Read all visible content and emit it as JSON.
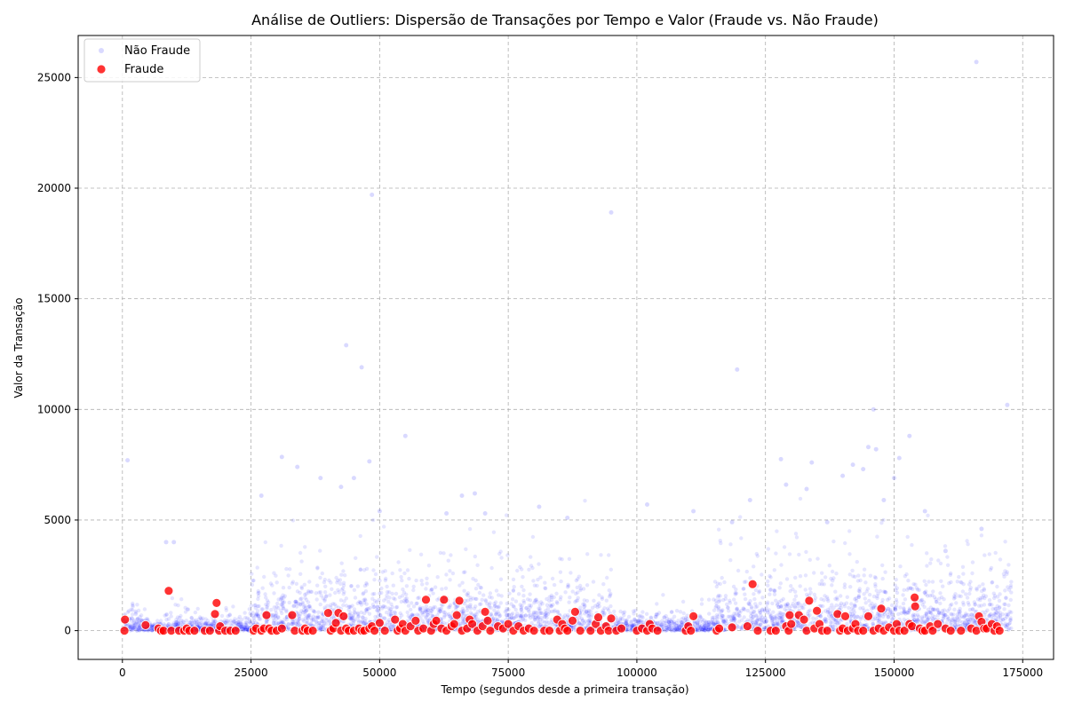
{
  "chart_data": {
    "type": "scatter",
    "title": "Análise de Outliers: Dispersão de Transações por Tempo e Valor (Fraude vs. Não Fraude)",
    "xlabel": "Tempo (segundos desde a primeira transação)",
    "ylabel": "Valor da Transação",
    "xlim": [
      -8600,
      181000
    ],
    "ylim": [
      -1300,
      26900
    ],
    "xticks": [
      0,
      25000,
      50000,
      75000,
      100000,
      125000,
      150000,
      175000
    ],
    "yticks": [
      0,
      5000,
      10000,
      15000,
      20000,
      25000
    ],
    "grid": true,
    "legend_position": "top-left",
    "colors": {
      "non_fraud": "#0000ff",
      "fraud": "#ff0000"
    },
    "series": [
      {
        "name": "Não Fraude",
        "color": "#0000ff",
        "outliers": [
          [
            1000,
            7700
          ],
          [
            8500,
            4000
          ],
          [
            10000,
            4000
          ],
          [
            27000,
            6100
          ],
          [
            31000,
            7850
          ],
          [
            34000,
            7400
          ],
          [
            38500,
            6900
          ],
          [
            42500,
            6500
          ],
          [
            43500,
            12900
          ],
          [
            45000,
            6900
          ],
          [
            46500,
            11900
          ],
          [
            48000,
            7650
          ],
          [
            48500,
            19700
          ],
          [
            50000,
            5400
          ],
          [
            55000,
            8800
          ],
          [
            63000,
            5300
          ],
          [
            66000,
            6100
          ],
          [
            68500,
            6200
          ],
          [
            70500,
            5300
          ],
          [
            81000,
            5600
          ],
          [
            86500,
            5100
          ],
          [
            95000,
            18900
          ],
          [
            102000,
            5700
          ],
          [
            111000,
            5400
          ],
          [
            118500,
            4900
          ],
          [
            119500,
            11800
          ],
          [
            122000,
            5900
          ],
          [
            128000,
            7750
          ],
          [
            129000,
            6600
          ],
          [
            133000,
            6400
          ],
          [
            134000,
            7600
          ],
          [
            140000,
            7000
          ],
          [
            142000,
            7500
          ],
          [
            144000,
            7300
          ],
          [
            145000,
            8300
          ],
          [
            146000,
            10000
          ],
          [
            146500,
            8200
          ],
          [
            148000,
            5900
          ],
          [
            150000,
            6900
          ],
          [
            151000,
            7800
          ],
          [
            153000,
            8800
          ],
          [
            156000,
            5400
          ],
          [
            166000,
            25700
          ],
          [
            172000,
            10200
          ],
          [
            167000,
            4600
          ],
          [
            160000,
            3600
          ],
          [
            137000,
            4900
          ]
        ],
        "dense_bands": [
          {
            "x_range": [
              0,
              5000
            ],
            "y_typical": 800
          },
          {
            "x_range": [
              5000,
              25000
            ],
            "y_typical": 500
          },
          {
            "x_range": [
              25000,
              95000
            ],
            "y_typical": 1800
          },
          {
            "x_range": [
              95000,
              115000
            ],
            "y_typical": 600
          },
          {
            "x_range": [
              115000,
              172800
            ],
            "y_typical": 2000
          }
        ]
      },
      {
        "name": "Fraude",
        "color": "#ff0000",
        "points": [
          [
            400,
            0
          ],
          [
            500,
            500
          ],
          [
            4500,
            250
          ],
          [
            7000,
            100
          ],
          [
            7500,
            0
          ],
          [
            8000,
            0
          ],
          [
            9000,
            1800
          ],
          [
            9500,
            0
          ],
          [
            11000,
            0
          ],
          [
            12000,
            0
          ],
          [
            12500,
            100
          ],
          [
            13000,
            0
          ],
          [
            14000,
            0
          ],
          [
            16000,
            0
          ],
          [
            17000,
            0
          ],
          [
            18000,
            750
          ],
          [
            18300,
            1250
          ],
          [
            18800,
            0
          ],
          [
            19000,
            200
          ],
          [
            20000,
            0
          ],
          [
            21000,
            0
          ],
          [
            22000,
            0
          ],
          [
            25500,
            0
          ],
          [
            26000,
            100
          ],
          [
            27000,
            0
          ],
          [
            27500,
            100
          ],
          [
            28000,
            700
          ],
          [
            28500,
            100
          ],
          [
            29000,
            0
          ],
          [
            30000,
            0
          ],
          [
            31000,
            100
          ],
          [
            33000,
            700
          ],
          [
            33500,
            0
          ],
          [
            35000,
            0
          ],
          [
            35500,
            100
          ],
          [
            36000,
            0
          ],
          [
            37000,
            0
          ],
          [
            40000,
            800
          ],
          [
            40500,
            0
          ],
          [
            41000,
            100
          ],
          [
            41500,
            350
          ],
          [
            42000,
            800
          ],
          [
            42500,
            0
          ],
          [
            43000,
            650
          ],
          [
            43500,
            100
          ],
          [
            44000,
            0
          ],
          [
            45000,
            0
          ],
          [
            46000,
            100
          ],
          [
            46500,
            0
          ],
          [
            47000,
            0
          ],
          [
            48000,
            100
          ],
          [
            48500,
            200
          ],
          [
            49000,
            0
          ],
          [
            50000,
            350
          ],
          [
            51000,
            0
          ],
          [
            53000,
            500
          ],
          [
            53500,
            0
          ],
          [
            54000,
            100
          ],
          [
            54500,
            300
          ],
          [
            55000,
            0
          ],
          [
            56000,
            200
          ],
          [
            57000,
            450
          ],
          [
            57500,
            0
          ],
          [
            58500,
            100
          ],
          [
            59000,
            1400
          ],
          [
            60000,
            0
          ],
          [
            60500,
            300
          ],
          [
            61000,
            450
          ],
          [
            62000,
            100
          ],
          [
            62500,
            1400
          ],
          [
            63000,
            0
          ],
          [
            64000,
            200
          ],
          [
            64500,
            300
          ],
          [
            65000,
            700
          ],
          [
            65500,
            1350
          ],
          [
            66000,
            0
          ],
          [
            67000,
            100
          ],
          [
            67500,
            500
          ],
          [
            68000,
            300
          ],
          [
            69000,
            0
          ],
          [
            70000,
            200
          ],
          [
            70500,
            850
          ],
          [
            71000,
            450
          ],
          [
            71500,
            0
          ],
          [
            73000,
            200
          ],
          [
            74000,
            100
          ],
          [
            75000,
            300
          ],
          [
            76000,
            0
          ],
          [
            77000,
            200
          ],
          [
            78000,
            0
          ],
          [
            79000,
            100
          ],
          [
            80000,
            0
          ],
          [
            82000,
            0
          ],
          [
            83000,
            0
          ],
          [
            84500,
            500
          ],
          [
            85000,
            0
          ],
          [
            85500,
            300
          ],
          [
            86000,
            100
          ],
          [
            86500,
            0
          ],
          [
            87500,
            450
          ],
          [
            88000,
            850
          ],
          [
            89000,
            0
          ],
          [
            91000,
            0
          ],
          [
            92000,
            300
          ],
          [
            92500,
            600
          ],
          [
            93000,
            0
          ],
          [
            94000,
            200
          ],
          [
            94500,
            0
          ],
          [
            95000,
            550
          ],
          [
            96000,
            0
          ],
          [
            97000,
            100
          ],
          [
            100000,
            0
          ],
          [
            101000,
            100
          ],
          [
            102000,
            0
          ],
          [
            102500,
            300
          ],
          [
            103000,
            100
          ],
          [
            104000,
            0
          ],
          [
            109500,
            0
          ],
          [
            110000,
            200
          ],
          [
            110500,
            0
          ],
          [
            111000,
            650
          ],
          [
            115500,
            0
          ],
          [
            116000,
            100
          ],
          [
            118500,
            150
          ],
          [
            121500,
            200
          ],
          [
            122500,
            2100
          ],
          [
            123500,
            0
          ],
          [
            126000,
            0
          ],
          [
            127000,
            0
          ],
          [
            129000,
            200
          ],
          [
            129500,
            0
          ],
          [
            129700,
            700
          ],
          [
            130000,
            300
          ],
          [
            131500,
            700
          ],
          [
            132500,
            500
          ],
          [
            133000,
            0
          ],
          [
            133500,
            1350
          ],
          [
            134500,
            100
          ],
          [
            135000,
            900
          ],
          [
            135500,
            300
          ],
          [
            136000,
            0
          ],
          [
            137000,
            0
          ],
          [
            139000,
            750
          ],
          [
            139500,
            0
          ],
          [
            140000,
            100
          ],
          [
            140500,
            650
          ],
          [
            141000,
            0
          ],
          [
            142000,
            100
          ],
          [
            142500,
            300
          ],
          [
            143000,
            0
          ],
          [
            144000,
            0
          ],
          [
            145000,
            650
          ],
          [
            146000,
            0
          ],
          [
            147000,
            100
          ],
          [
            147500,
            1000
          ],
          [
            148000,
            0
          ],
          [
            149000,
            150
          ],
          [
            150000,
            0
          ],
          [
            150500,
            300
          ],
          [
            151000,
            0
          ],
          [
            152000,
            0
          ],
          [
            153000,
            300
          ],
          [
            153500,
            200
          ],
          [
            154000,
            1500
          ],
          [
            154100,
            1100
          ],
          [
            155000,
            100
          ],
          [
            155500,
            0
          ],
          [
            156000,
            0
          ],
          [
            157000,
            200
          ],
          [
            157500,
            0
          ],
          [
            158500,
            300
          ],
          [
            160000,
            100
          ],
          [
            161000,
            0
          ],
          [
            163000,
            0
          ],
          [
            165000,
            100
          ],
          [
            166000,
            0
          ],
          [
            166500,
            650
          ],
          [
            167000,
            400
          ],
          [
            167500,
            100
          ],
          [
            168000,
            100
          ],
          [
            169000,
            300
          ],
          [
            169500,
            0
          ],
          [
            170000,
            200
          ],
          [
            170500,
            0
          ]
        ]
      }
    ]
  }
}
